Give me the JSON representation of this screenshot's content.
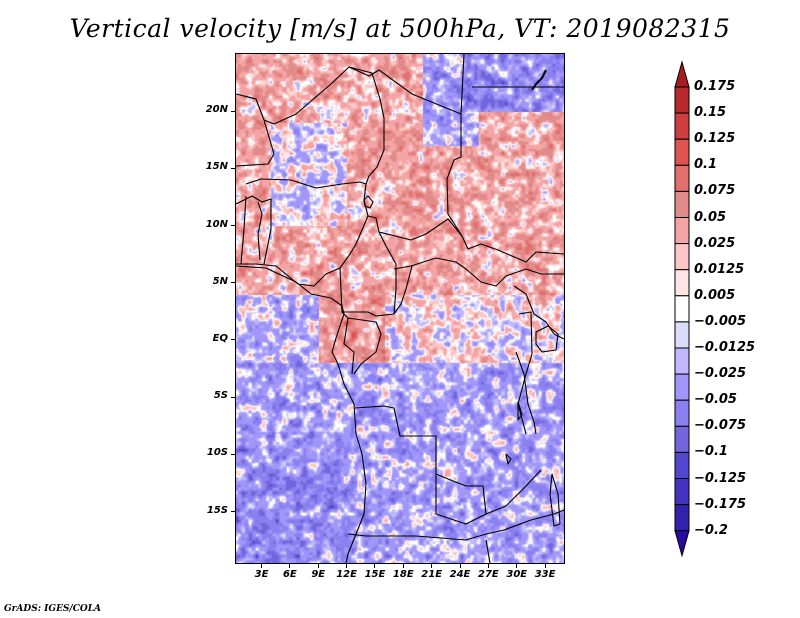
{
  "chart_data": {
    "type": "heatmap",
    "title": "Vertical velocity [m/s] at 500hPa, VT: 2019082315",
    "variable": "Vertical velocity",
    "units": "m/s",
    "level": "500hPa",
    "valid_time": "2019082315",
    "xlabel": "",
    "ylabel": "",
    "x_ticks": [
      "3E",
      "6E",
      "9E",
      "12E",
      "15E",
      "18E",
      "21E",
      "24E",
      "27E",
      "30E",
      "33E"
    ],
    "x_tick_values": [
      3,
      6,
      9,
      12,
      15,
      18,
      21,
      24,
      27,
      30,
      33
    ],
    "y_ticks": [
      "20N",
      "15N",
      "10N",
      "5N",
      "EQ",
      "5S",
      "10S",
      "15S"
    ],
    "y_tick_values": [
      20,
      15,
      10,
      5,
      0,
      -5,
      -10,
      -15
    ],
    "xlim": [
      0.3,
      35
    ],
    "ylim": [
      -19.5,
      25
    ],
    "grid": false,
    "legend_position": "right",
    "colorbar": {
      "levels": [
        0.175,
        0.15,
        0.125,
        0.1,
        0.075,
        0.05,
        0.025,
        0.0125,
        0.005,
        -0.005,
        -0.0125,
        -0.025,
        -0.05,
        -0.075,
        -0.1,
        -0.125,
        -0.175,
        -0.2
      ],
      "labels": [
        "0.175",
        "0.15",
        "0.125",
        "0.1",
        "0.075",
        "0.05",
        "0.025",
        "0.0125",
        "0.005",
        "−0.005",
        "−0.0125",
        "−0.025",
        "−0.05",
        "−0.075",
        "−0.1",
        "−0.125",
        "−0.175",
        "−0.2"
      ],
      "colors": [
        "#a51d22",
        "#b82a2e",
        "#cc3e3f",
        "#e05353",
        "#e3706f",
        "#e28b8b",
        "#f4a4a4",
        "#fbc6c6",
        "#fde5e5",
        "#ffffff",
        "#dcdcfa",
        "#c0b8fa",
        "#a197fa",
        "#8b80ef",
        "#7366dd",
        "#5447cf",
        "#4433bf",
        "#3422ad",
        "#2a0aa0"
      ],
      "extend": "both"
    },
    "regions_summary": {
      "north_sahel_west_central_africa": "predominantly positive (red, upward motion 0.005 to 0.15)",
      "southern_atlantic_angola_zambia": "predominantly negative (blue, -0.005 to -0.1)",
      "congo_basin": "mixed positive and negative"
    }
  },
  "footer": {
    "credit": "GrADS: IGES/COLA"
  }
}
